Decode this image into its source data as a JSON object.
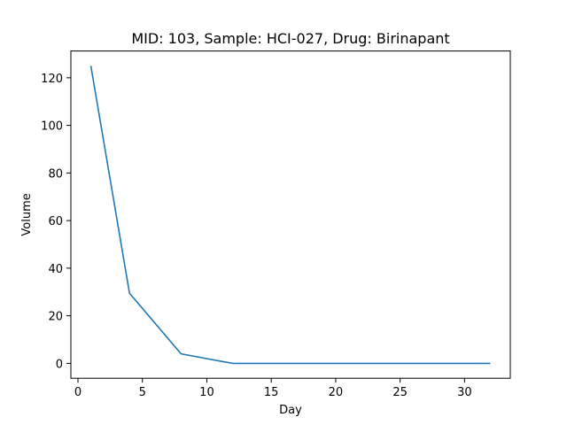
{
  "chart_data": {
    "type": "line",
    "title": "MID: 103, Sample: HCI-027, Drug: Birinapant",
    "xlabel": "Day",
    "ylabel": "Volume",
    "xlim": [
      -0.55,
      33.55
    ],
    "ylim": [
      -6.25,
      131.25
    ],
    "x_ticks": [
      0,
      5,
      10,
      15,
      20,
      25,
      30
    ],
    "y_ticks": [
      0,
      20,
      40,
      60,
      80,
      100,
      120
    ],
    "grid": false,
    "series": [
      {
        "color": "#1f77b4",
        "x": [
          1,
          4,
          8,
          12,
          15,
          18,
          22,
          25,
          29,
          32
        ],
        "y": [
          125,
          29.5,
          4,
          0,
          0,
          0,
          0,
          0,
          0,
          0
        ]
      }
    ]
  }
}
